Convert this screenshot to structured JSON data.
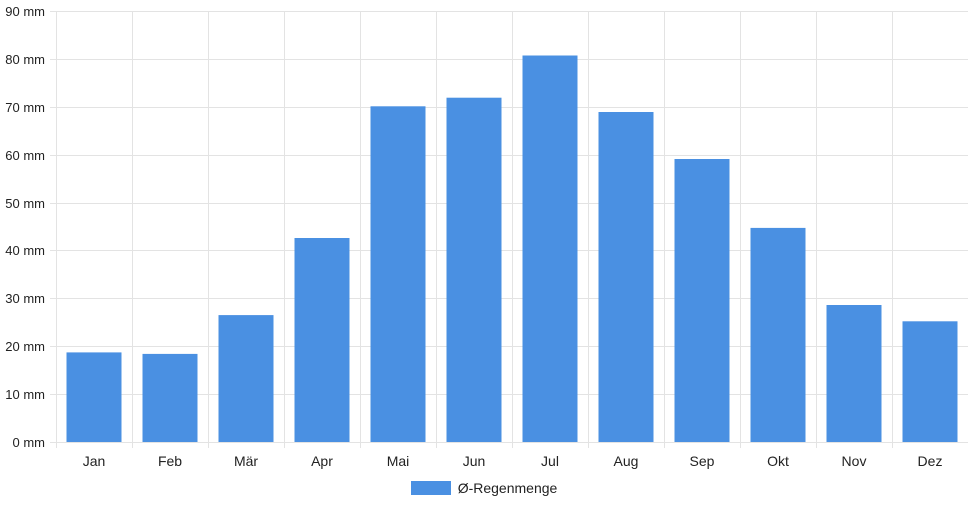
{
  "chart_data": {
    "type": "bar",
    "categories": [
      "Jan",
      "Feb",
      "Mär",
      "Apr",
      "Mai",
      "Jun",
      "Jul",
      "Aug",
      "Sep",
      "Okt",
      "Nov",
      "Dez"
    ],
    "series": [
      {
        "name": "Ø-Regenmenge",
        "values": [
          18.7,
          18.4,
          26.5,
          42.6,
          70.1,
          71.9,
          80.7,
          68.9,
          59.1,
          44.7,
          28.6,
          25.2
        ],
        "color": "#4a90e2"
      }
    ],
    "ylim": [
      0,
      90
    ],
    "yticks": [
      0,
      10,
      20,
      30,
      40,
      50,
      60,
      70,
      80,
      90
    ],
    "ytick_suffix": " mm",
    "grid": true,
    "legend_position": "bottom-center"
  }
}
